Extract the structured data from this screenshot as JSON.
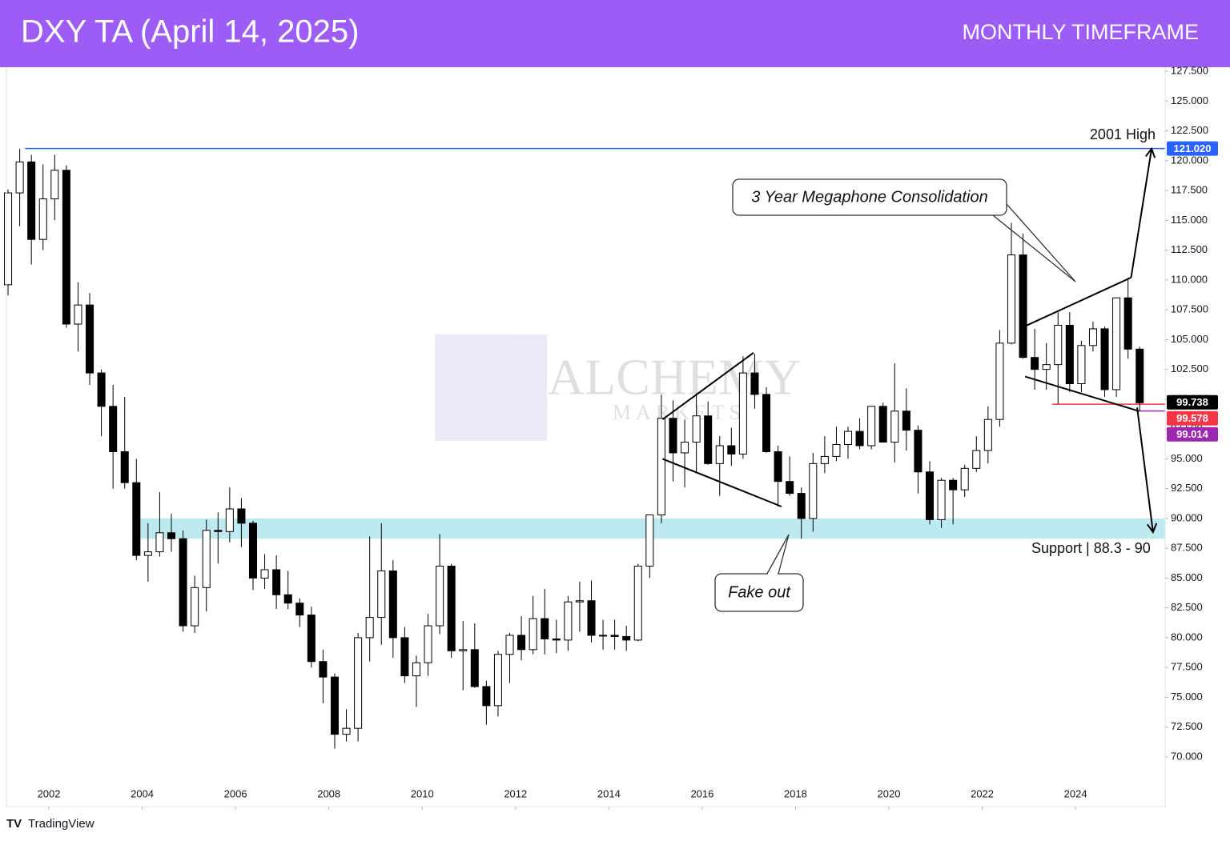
{
  "chart_data": {
    "type": "candlestick",
    "title": "DXY TA (April 14, 2025)",
    "subtitle": "MONTHLY TIMEFRAME",
    "x": [
      2001.125,
      2001.375,
      2001.625,
      2001.875,
      2002.125,
      2002.375,
      2002.625,
      2002.875,
      2003.125,
      2003.375,
      2003.625,
      2003.875,
      2004.125,
      2004.375,
      2004.625,
      2004.875,
      2005.125,
      2005.375,
      2005.625,
      2005.875,
      2006.125,
      2006.375,
      2006.625,
      2006.875,
      2007.125,
      2007.375,
      2007.625,
      2007.875,
      2008.125,
      2008.375,
      2008.625,
      2008.875,
      2009.125,
      2009.375,
      2009.625,
      2009.875,
      2010.125,
      2010.375,
      2010.625,
      2010.875,
      2011.125,
      2011.375,
      2011.625,
      2011.875,
      2012.125,
      2012.375,
      2012.625,
      2012.875,
      2013.125,
      2013.375,
      2013.625,
      2013.875,
      2014.125,
      2014.375,
      2014.625,
      2014.875,
      2015.125,
      2015.375,
      2015.625,
      2015.875,
      2016.125,
      2016.375,
      2016.625,
      2016.875,
      2017.125,
      2017.375,
      2017.625,
      2017.875,
      2018.125,
      2018.375,
      2018.625,
      2018.875,
      2019.125,
      2019.375,
      2019.625,
      2019.875,
      2020.125,
      2020.375,
      2020.625,
      2020.875,
      2021.125,
      2021.375,
      2021.625,
      2021.875,
      2022.125,
      2022.375,
      2022.625,
      2022.875,
      2023.125,
      2023.375,
      2023.625,
      2023.875,
      2024.125,
      2024.375,
      2024.625,
      2024.875,
      2025.125,
      2025.375
    ],
    "open": [
      109.6,
      117.3,
      119.9,
      113.4,
      116.8,
      119.2,
      106.3,
      107.9,
      102.2,
      99.4,
      95.6,
      93.0,
      86.9,
      87.2,
      88.8,
      88.3,
      81.0,
      84.2,
      89.0,
      88.9,
      90.8,
      89.6,
      85.0,
      85.7,
      83.6,
      82.9,
      81.9,
      78.0,
      76.7,
      71.9,
      72.4,
      80.0,
      81.7,
      85.6,
      80.0,
      76.8,
      77.9,
      81.0,
      86.0,
      78.9,
      79.0,
      75.9,
      74.3,
      78.6,
      80.2,
      79.0,
      81.6,
      79.9,
      79.8,
      83.0,
      83.1,
      80.2,
      80.2,
      80.1,
      79.8,
      86.0,
      90.3,
      98.4,
      95.5,
      96.4,
      98.6,
      94.6,
      96.1,
      95.4,
      102.2,
      100.4,
      95.6,
      93.1,
      92.1,
      90.0,
      94.6,
      95.2,
      96.2,
      97.3,
      96.1,
      99.4,
      96.4,
      99.0,
      97.4,
      93.9,
      89.9,
      93.2,
      92.4,
      94.2,
      95.7,
      98.3,
      104.7,
      112.1,
      103.5,
      102.5,
      102.9,
      106.2,
      101.3,
      104.5,
      105.9,
      100.8,
      108.5,
      104.2
    ],
    "high": [
      117.6,
      121.0,
      120.5,
      119.7,
      120.5,
      119.6,
      109.8,
      108.9,
      102.5,
      101.2,
      100.2,
      95.0,
      89.6,
      92.2,
      90.4,
      89.0,
      85.2,
      89.9,
      90.5,
      92.6,
      91.7,
      89.8,
      87.0,
      86.9,
      85.6,
      83.3,
      82.6,
      79.0,
      77.0,
      74.0,
      80.4,
      88.5,
      89.6,
      86.5,
      80.9,
      78.5,
      82.0,
      88.7,
      86.2,
      81.4,
      81.2,
      76.4,
      78.9,
      80.4,
      81.8,
      83.5,
      84.1,
      81.5,
      83.5,
      84.7,
      84.8,
      81.5,
      81.5,
      81.0,
      86.2,
      90.3,
      100.4,
      99.9,
      98.3,
      100.5,
      99.8,
      96.9,
      97.6,
      103.6,
      103.8,
      101.0,
      96.1,
      95.2,
      92.6,
      95.5,
      96.9,
      97.7,
      97.7,
      98.4,
      99.4,
      99.7,
      103.0,
      100.9,
      97.8,
      94.8,
      93.4,
      93.4,
      94.5,
      96.9,
      99.4,
      105.8,
      114.8,
      113.9,
      105.9,
      104.7,
      107.3,
      107.3,
      104.9,
      106.5,
      106.1,
      108.5,
      110.2,
      104.4
    ],
    "low": [
      108.7,
      114.5,
      111.3,
      112.5,
      115.0,
      106.0,
      104.0,
      101.2,
      96.9,
      92.5,
      92.5,
      86.5,
      84.7,
      86.8,
      87.2,
      80.5,
      80.4,
      82.2,
      86.2,
      88.0,
      87.6,
      84.0,
      84.1,
      82.4,
      82.4,
      80.9,
      77.5,
      74.5,
      70.7,
      71.3,
      71.3,
      78.0,
      79.4,
      78.3,
      76.2,
      74.2,
      76.8,
      80.3,
      78.3,
      75.6,
      75.8,
      72.7,
      73.4,
      76.2,
      78.1,
      78.6,
      78.6,
      78.7,
      78.9,
      80.5,
      79.6,
      79.0,
      79.0,
      78.9,
      79.7,
      85.0,
      89.6,
      93.1,
      92.6,
      93.8,
      94.5,
      91.9,
      94.4,
      95.0,
      99.2,
      95.5,
      91.0,
      91.9,
      88.3,
      88.9,
      93.8,
      94.8,
      95.0,
      95.8,
      95.8,
      96.4,
      94.7,
      95.7,
      92.1,
      89.5,
      89.2,
      89.5,
      91.8,
      93.9,
      94.6,
      97.7,
      104.6,
      103.4,
      100.8,
      100.8,
      99.6,
      100.6,
      100.6,
      104.0,
      100.2,
      100.2,
      103.4,
      99.0
    ],
    "close": [
      117.3,
      119.9,
      113.4,
      116.8,
      119.2,
      106.3,
      107.9,
      102.2,
      99.4,
      95.6,
      93.0,
      86.9,
      87.2,
      88.8,
      88.3,
      81.0,
      84.2,
      89.0,
      88.9,
      90.8,
      89.6,
      85.0,
      85.7,
      83.6,
      82.9,
      81.9,
      78.0,
      76.7,
      71.9,
      72.4,
      80.0,
      81.7,
      85.6,
      80.0,
      76.8,
      77.9,
      81.0,
      86.0,
      78.9,
      79.0,
      75.9,
      74.3,
      78.6,
      80.2,
      79.0,
      81.6,
      79.9,
      79.8,
      83.0,
      83.1,
      80.2,
      80.2,
      80.1,
      79.8,
      86.0,
      90.3,
      98.4,
      95.5,
      96.4,
      98.6,
      94.6,
      96.1,
      95.4,
      102.2,
      100.4,
      95.6,
      93.1,
      92.1,
      90.0,
      94.6,
      95.2,
      96.2,
      97.3,
      96.1,
      99.4,
      96.4,
      99.0,
      97.4,
      93.9,
      89.9,
      93.2,
      92.4,
      94.2,
      95.7,
      98.3,
      104.7,
      112.1,
      103.5,
      102.5,
      102.9,
      106.2,
      101.3,
      104.5,
      105.9,
      100.8,
      108.5,
      104.2,
      99.7
    ],
    "up_color": "#ffffff",
    "down_color": "#000000",
    "xlim": [
      2001.09,
      2025.92
    ],
    "xticks": [
      2002,
      2004,
      2006,
      2008,
      2010,
      2012,
      2014,
      2016,
      2018,
      2020,
      2022,
      2024
    ],
    "ylim": [
      68.05,
      127.84
    ],
    "yticks": [
      {
        "value": 127.5,
        "label": "127.500"
      },
      {
        "value": 125,
        "label": "125.000"
      },
      {
        "value": 122.5,
        "label": "122.500"
      },
      {
        "value": 120,
        "label": "120.000"
      },
      {
        "value": 117.5,
        "label": "117.500"
      },
      {
        "value": 115,
        "label": "115.000"
      },
      {
        "value": 112.5,
        "label": "112.500"
      },
      {
        "value": 110,
        "label": "110.000"
      },
      {
        "value": 107.5,
        "label": "107.500"
      },
      {
        "value": 105,
        "label": "105.000"
      },
      {
        "value": 102.5,
        "label": "102.500"
      },
      {
        "value": 100,
        "label": "100.000"
      },
      {
        "value": 97.5,
        "label": "97.500"
      },
      {
        "value": 95,
        "label": "95.000"
      },
      {
        "value": 92.5,
        "label": "92.500"
      },
      {
        "value": 90,
        "label": "90.000"
      },
      {
        "value": 87.5,
        "label": "87.500"
      },
      {
        "value": 85,
        "label": "85.000"
      },
      {
        "value": 82.5,
        "label": "82.500"
      },
      {
        "value": 80,
        "label": "80.000"
      },
      {
        "value": 77.5,
        "label": "77.500"
      },
      {
        "value": 75,
        "label": "75.000"
      },
      {
        "value": 72.5,
        "label": "72.500"
      },
      {
        "value": 70,
        "label": "70.000"
      }
    ],
    "levels": [
      {
        "name": "2001 High",
        "value": 121.02,
        "label": "121.020",
        "color": "#2962ff",
        "x_start": 2001.49
      },
      {
        "value": 99.738,
        "label": "99.738",
        "color": "#000000"
      },
      {
        "value": 99.578,
        "label": "99.578",
        "color": "#f23645",
        "x_start": 2023.5
      },
      {
        "value": 99.014,
        "label": "99.014",
        "color": "#9c27b0",
        "x_start": 2025.3
      }
    ],
    "support_zone": {
      "from": 88.3,
      "to": 90,
      "x_start": 2003.87,
      "label": "Support | 88.3 - 90",
      "color": "#bde9f1"
    },
    "trendlines": [
      {
        "x": [
          2015.15,
          2017.1
        ],
        "y": [
          98.3,
          103.9
        ]
      },
      {
        "x": [
          2015.15,
          2017.7
        ],
        "y": [
          95.0,
          91.0
        ]
      },
      {
        "x": [
          2022.85,
          2025.19
        ],
        "y": [
          106.0,
          110.2
        ]
      },
      {
        "x": [
          2022.92,
          2025.36
        ],
        "y": [
          101.9,
          99.0
        ]
      }
    ],
    "arrows": [
      {
        "x": [
          2025.19,
          2025.63
        ],
        "y": [
          110.2,
          121.0
        ]
      },
      {
        "x": [
          2025.32,
          2025.66
        ],
        "y": [
          99.3,
          88.85
        ]
      }
    ],
    "annotations": [
      "3 Year Megaphone Consolidation",
      "Fake out"
    ],
    "watermark": [
      "ALCHEMY",
      "MARKETS"
    ],
    "footer": "TradingView"
  }
}
